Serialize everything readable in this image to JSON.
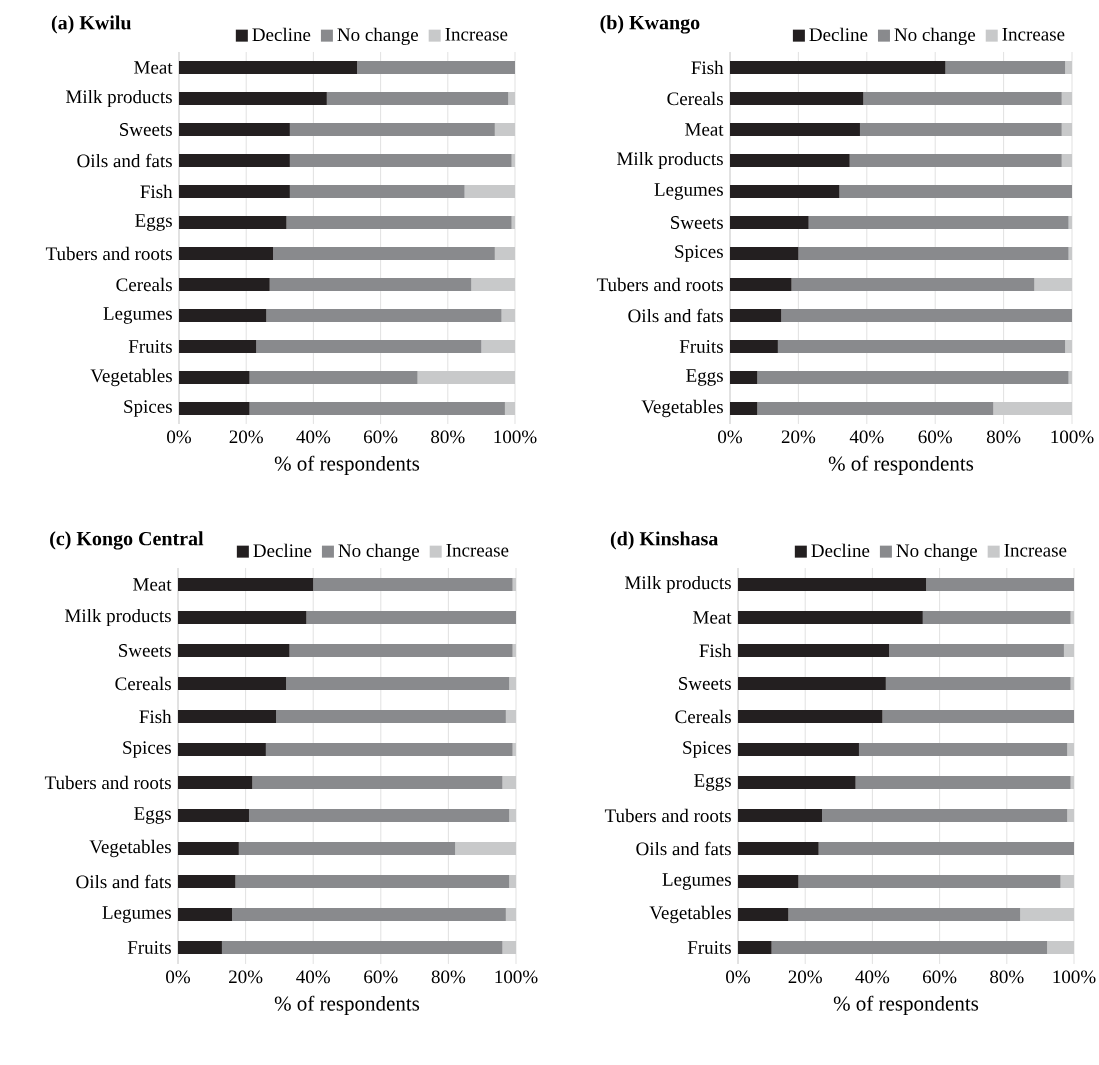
{
  "chart_data": [
    {
      "type": "bar",
      "orientation": "horizontal",
      "stacked": true,
      "title": "(a) Kwilu",
      "xlabel": "% of respondents",
      "legend": "top right",
      "grid": "x",
      "categories": [
        "Meat",
        "Milk products",
        "Sweets",
        "Oils and fats",
        "Fish",
        "Eggs",
        "Tubers and roots",
        "Cereals",
        "Legumes",
        "Fruits",
        "Vegetables",
        "Spices"
      ],
      "series": [
        {
          "name": "Decline",
          "color": "#231f20",
          "values": [
            53,
            44,
            33,
            33,
            33,
            32,
            28,
            27,
            26,
            23,
            21,
            21
          ]
        },
        {
          "name": "No change",
          "color": "#898a8d",
          "values": [
            47,
            54,
            61,
            66,
            52,
            67,
            66,
            60,
            70,
            67,
            50,
            76
          ]
        },
        {
          "name": "Increase",
          "color": "#c8c9ca",
          "values": [
            0,
            2,
            6,
            1,
            15,
            1,
            6,
            13,
            4,
            10,
            29,
            3
          ]
        }
      ],
      "xlim": [
        0,
        100
      ],
      "xticks": [
        {
          "value": 0,
          "label": "0%"
        },
        {
          "value": 20,
          "label": "20%"
        },
        {
          "value": 40,
          "label": "40%"
        },
        {
          "value": 60,
          "label": "60%"
        },
        {
          "value": 80,
          "label": "80%"
        },
        {
          "value": 100,
          "label": "100%"
        }
      ]
    },
    {
      "type": "bar",
      "orientation": "horizontal",
      "stacked": true,
      "title": "(b) Kwango",
      "xlabel": "% of respondents",
      "legend": "top right",
      "grid": "x",
      "categories": [
        "Fish",
        "Cereals",
        "Meat",
        "Milk products",
        "Legumes",
        "Sweets",
        "Spices",
        "Tubers and roots",
        "Oils and fats",
        "Fruits",
        "Eggs",
        "Vegetables"
      ],
      "series": [
        {
          "name": "Decline",
          "color": "#231f20",
          "values": [
            63,
            39,
            38,
            35,
            32,
            23,
            20,
            18,
            15,
            14,
            8,
            8
          ]
        },
        {
          "name": "No change",
          "color": "#898a8d",
          "values": [
            35,
            58,
            59,
            62,
            68,
            76,
            79,
            71,
            85,
            84,
            91,
            69
          ]
        },
        {
          "name": "Increase",
          "color": "#c8c9ca",
          "values": [
            2,
            3,
            3,
            3,
            0,
            1,
            1,
            11,
            0,
            2,
            1,
            23
          ]
        }
      ],
      "xlim": [
        0,
        100
      ],
      "xticks": [
        {
          "value": 0,
          "label": "0%"
        },
        {
          "value": 20,
          "label": "20%"
        },
        {
          "value": 40,
          "label": "40%"
        },
        {
          "value": 60,
          "label": "60%"
        },
        {
          "value": 80,
          "label": "80%"
        },
        {
          "value": 100,
          "label": "100%"
        }
      ]
    },
    {
      "type": "bar",
      "orientation": "horizontal",
      "stacked": true,
      "title": "(c) Kongo Central",
      "xlabel": "% of respondents",
      "legend": "top right",
      "grid": "x",
      "categories": [
        "Meat",
        "Milk products",
        "Sweets",
        "Cereals",
        "Fish",
        "Spices",
        "Tubers and roots",
        "Eggs",
        "Vegetables",
        "Oils and fats",
        "Legumes",
        "Fruits"
      ],
      "series": [
        {
          "name": "Decline",
          "color": "#231f20",
          "values": [
            40,
            38,
            33,
            32,
            29,
            26,
            22,
            21,
            18,
            17,
            16,
            13
          ]
        },
        {
          "name": "No change",
          "color": "#898a8d",
          "values": [
            59,
            62,
            66,
            66,
            68,
            73,
            74,
            77,
            64,
            81,
            81,
            83
          ]
        },
        {
          "name": "Increase",
          "color": "#c8c9ca",
          "values": [
            1,
            0,
            1,
            2,
            3,
            1,
            4,
            2,
            18,
            2,
            3,
            4
          ]
        }
      ],
      "xlim": [
        0,
        100
      ],
      "xticks": [
        {
          "value": 0,
          "label": "0%"
        },
        {
          "value": 20,
          "label": "20%"
        },
        {
          "value": 40,
          "label": "40%"
        },
        {
          "value": 60,
          "label": "60%"
        },
        {
          "value": 80,
          "label": "80%"
        },
        {
          "value": 100,
          "label": "100%"
        }
      ]
    },
    {
      "type": "bar",
      "orientation": "horizontal",
      "stacked": true,
      "title": "(d) Kinshasa",
      "xlabel": "% of respondents",
      "legend": "top right",
      "grid": "x",
      "categories": [
        "Milk products",
        "Meat",
        "Fish",
        "Sweets",
        "Cereals",
        "Spices",
        "Eggs",
        "Tubers and roots",
        "Oils and fats",
        "Legumes",
        "Vegetables",
        "Fruits"
      ],
      "series": [
        {
          "name": "Decline",
          "color": "#231f20",
          "values": [
            56,
            55,
            45,
            44,
            43,
            36,
            35,
            25,
            24,
            18,
            15,
            10
          ]
        },
        {
          "name": "No change",
          "color": "#898a8d",
          "values": [
            44,
            44,
            52,
            55,
            57,
            62,
            64,
            73,
            76,
            78,
            69,
            82
          ]
        },
        {
          "name": "Increase",
          "color": "#c8c9ca",
          "values": [
            0,
            1,
            3,
            1,
            0,
            2,
            1,
            2,
            0,
            4,
            16,
            8
          ]
        }
      ],
      "xlim": [
        0,
        100
      ],
      "xticks": [
        {
          "value": 0,
          "label": "0%"
        },
        {
          "value": 20,
          "label": "20%"
        },
        {
          "value": 40,
          "label": "40%"
        },
        {
          "value": 60,
          "label": "60%"
        },
        {
          "value": 80,
          "label": "80%"
        },
        {
          "value": 100,
          "label": "100%"
        }
      ]
    }
  ]
}
